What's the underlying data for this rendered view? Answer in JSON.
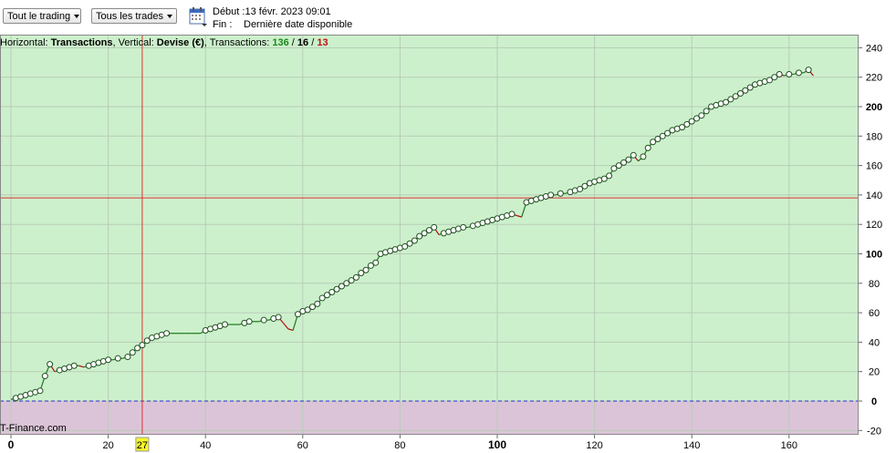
{
  "toolbar": {
    "trading_filter": "Tout le trading",
    "trades_filter": "Tous les trades",
    "calendar_icon": "calendar-icon",
    "start_label": "Début :",
    "start_value": "13 févr. 2023 09:01",
    "end_label": "Fin :",
    "end_value": "Dernière date disponible"
  },
  "header": {
    "h_prefix": "Horizontal: ",
    "h_value": "Transactions",
    "v_prefix": ", Vertical: ",
    "v_value": "Devise (€)",
    "t_prefix": ", Transactions: ",
    "total": "136",
    "sep1": " / ",
    "wins": "16",
    "sep2": " / ",
    "losses": "13"
  },
  "watermark": "T-Finance.com",
  "crosshair": {
    "x_value": 27,
    "x_label": "27",
    "y_value": 138
  },
  "colors": {
    "positive_bg": "#cdf0cc",
    "negative_bg": "#dcc4d8",
    "line_up": "#1a7a1a",
    "line_down": "#b01010",
    "crosshair": "#e03030",
    "zero_line": "#2a2ad0",
    "wins": "#1a8a1a",
    "losses": "#c01010"
  },
  "chart_data": {
    "type": "line",
    "xlabel": "Transactions",
    "ylabel": "Devise (€)",
    "xlim": [
      0,
      175
    ],
    "ylim": [
      -23,
      247
    ],
    "x_ticks": [
      0,
      20,
      40,
      60,
      80,
      100,
      120,
      140,
      160
    ],
    "x_bold_ticks": [
      0,
      100
    ],
    "y_ticks": [
      -20,
      0,
      20,
      40,
      60,
      80,
      100,
      120,
      140,
      160,
      180,
      200,
      220,
      240
    ],
    "y_bold_ticks": [
      0,
      100,
      200
    ],
    "grid": true,
    "series": [
      {
        "x": [
          0,
          1,
          2,
          3,
          4,
          5,
          6,
          7,
          8,
          9,
          10,
          11,
          12,
          13,
          14,
          15,
          16,
          17,
          18,
          19,
          20,
          21,
          22,
          23,
          24,
          25,
          26,
          27,
          28,
          29,
          30,
          31,
          32,
          33,
          34,
          35,
          36,
          37,
          38,
          39,
          40,
          41,
          42,
          43,
          44,
          45,
          46,
          47,
          48,
          49,
          50,
          51,
          52,
          53,
          54,
          55,
          56,
          57,
          58,
          59,
          60,
          61,
          62,
          63,
          64,
          65,
          66,
          67,
          68,
          69,
          70,
          71,
          72,
          73,
          74,
          75,
          76,
          77,
          78,
          79,
          80,
          81,
          82,
          83,
          84,
          85,
          86,
          87,
          88,
          89,
          90,
          91,
          92,
          93,
          94,
          95,
          96,
          97,
          98,
          99,
          100,
          101,
          102,
          103,
          104,
          105,
          106,
          107,
          108,
          109,
          110,
          111,
          112,
          113,
          114,
          115,
          116,
          117,
          118,
          119,
          120,
          121,
          122,
          123,
          124,
          125,
          126,
          127,
          128,
          129,
          130,
          131,
          132,
          133,
          134,
          135,
          136,
          137,
          138,
          139,
          140,
          141,
          142,
          143,
          144,
          145,
          146,
          147,
          148,
          149,
          150,
          151,
          152,
          153,
          154,
          155,
          156,
          157,
          158,
          159,
          160,
          161,
          162,
          163,
          164,
          165
        ],
        "y": [
          1,
          2,
          3,
          4,
          5,
          6,
          7,
          17,
          25,
          20,
          21,
          22,
          23,
          24,
          24,
          23,
          24,
          25,
          26,
          27,
          28,
          28,
          29,
          29,
          30,
          33,
          36,
          38,
          41,
          43,
          44,
          45,
          46,
          46,
          46,
          46,
          46,
          46,
          46,
          46,
          48,
          49,
          50,
          51,
          52,
          52,
          52,
          52,
          53,
          54,
          54,
          54,
          55,
          55,
          56,
          57,
          53,
          49,
          48,
          59,
          61,
          62,
          64,
          66,
          70,
          72,
          74,
          76,
          78,
          80,
          82,
          84,
          87,
          89,
          92,
          94,
          100,
          101,
          102,
          103,
          104,
          105,
          107,
          109,
          112,
          114,
          116,
          118,
          113,
          114,
          115,
          116,
          117,
          118,
          118,
          119,
          120,
          121,
          122,
          123,
          124,
          125,
          126,
          127,
          126,
          125,
          135,
          136,
          137,
          138,
          139,
          140,
          140,
          141,
          141,
          142,
          143,
          144,
          146,
          148,
          149,
          150,
          151,
          153,
          158,
          160,
          162,
          164,
          167,
          163,
          166,
          172,
          176,
          178,
          180,
          182,
          184,
          185,
          186,
          188,
          190,
          192,
          194,
          197,
          200,
          201,
          202,
          203,
          205,
          207,
          209,
          211,
          213,
          215,
          216,
          217,
          218,
          220,
          222,
          221,
          222,
          222,
          223,
          223,
          225,
          221
        ]
      }
    ]
  }
}
